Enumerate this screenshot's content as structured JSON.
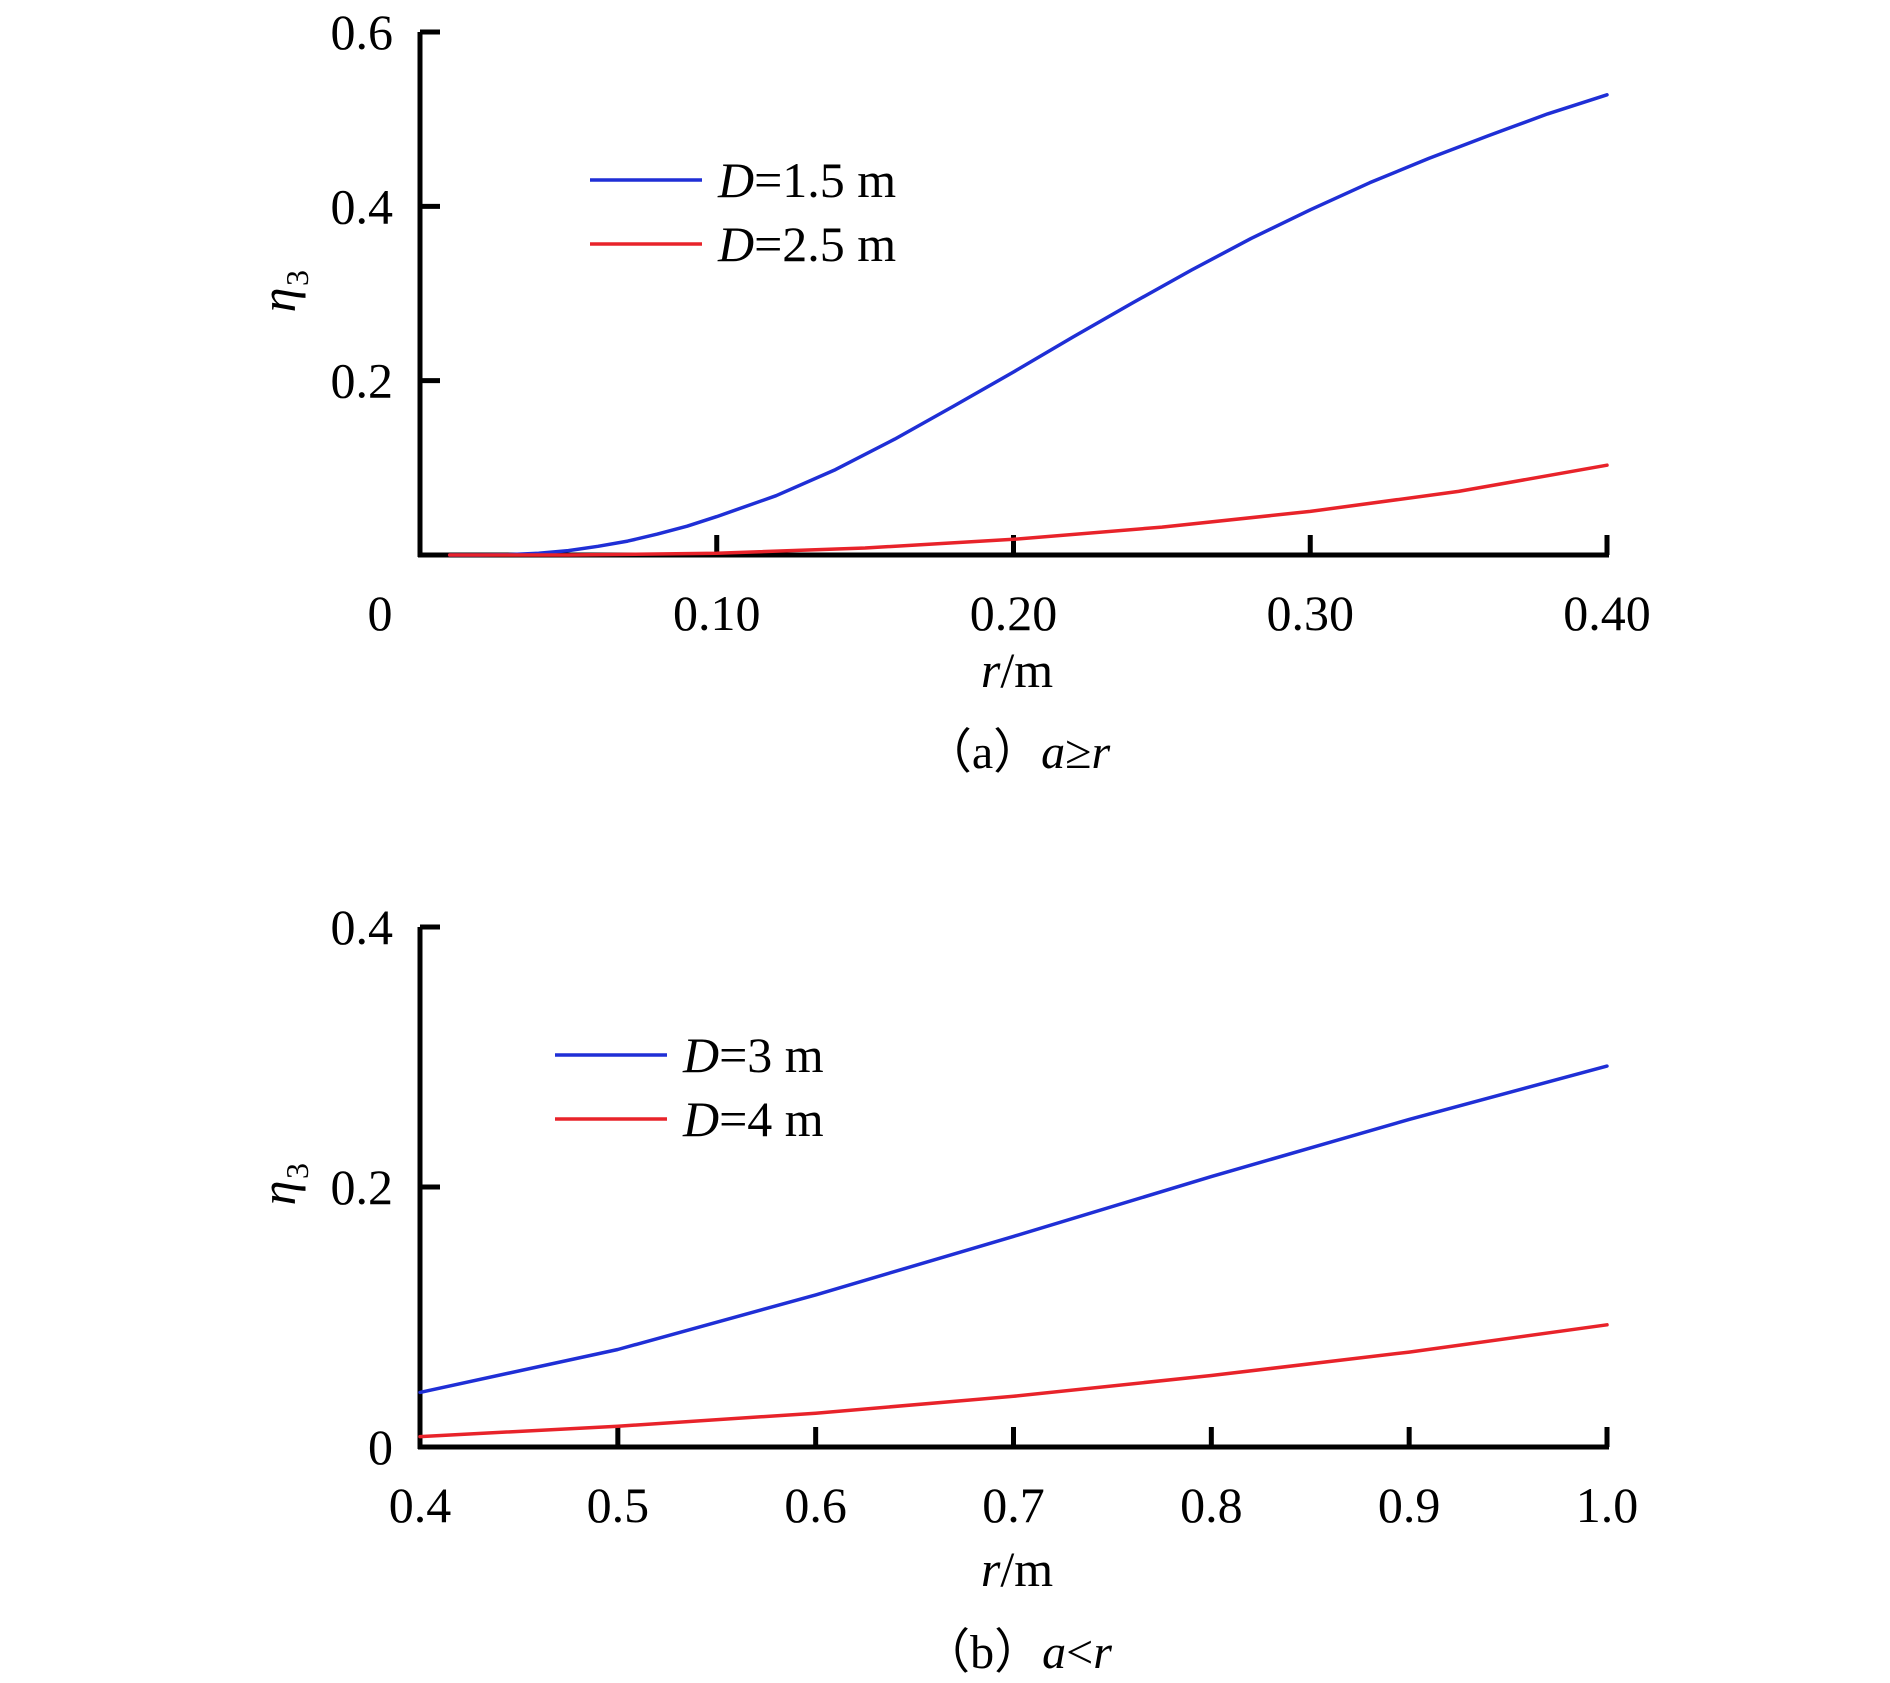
{
  "chart_data": [
    {
      "type": "line",
      "panel_caption": {
        "prefix": "（a）",
        "var_a": "a",
        "relation": "≥",
        "var_r": "r"
      },
      "xlabel": {
        "var": "r",
        "unit": "/m"
      },
      "ylabel": {
        "var": "η",
        "sub": "3"
      },
      "xlim": [
        0.0,
        0.4
      ],
      "ylim": [
        0.0,
        0.6
      ],
      "x_ticks": [
        0.1,
        0.2,
        0.3,
        0.4
      ],
      "x_tick_labels": [
        "0.10",
        "0.20",
        "0.30",
        "0.40"
      ],
      "x_origin_label": "0",
      "y_ticks": [
        0.2,
        0.4,
        0.6
      ],
      "y_tick_labels": [
        "0.2",
        "0.4",
        "0.6"
      ],
      "grid": false,
      "legend_position": "top-left",
      "series": [
        {
          "legend_var": "D",
          "legend_text": "=1.5 m",
          "color": "#1f2fd6",
          "x": [
            0.01,
            0.02,
            0.03,
            0.04,
            0.05,
            0.06,
            0.07,
            0.08,
            0.09,
            0.1,
            0.12,
            0.14,
            0.16,
            0.18,
            0.2,
            0.22,
            0.24,
            0.26,
            0.28,
            0.3,
            0.32,
            0.34,
            0.36,
            0.38,
            0.4
          ],
          "y": [
            0.0,
            0.0,
            0.0005,
            0.002,
            0.005,
            0.01,
            0.016,
            0.024,
            0.033,
            0.044,
            0.068,
            0.098,
            0.133,
            0.171,
            0.21,
            0.25,
            0.289,
            0.327,
            0.363,
            0.396,
            0.427,
            0.455,
            0.481,
            0.506,
            0.528
          ]
        },
        {
          "legend_var": "D",
          "legend_text": "=2.5 m",
          "color": "#e8232a",
          "x": [
            0.01,
            0.05,
            0.1,
            0.15,
            0.2,
            0.25,
            0.3,
            0.35,
            0.4
          ],
          "y": [
            0.0,
            0.0,
            0.002,
            0.008,
            0.018,
            0.032,
            0.05,
            0.073,
            0.103
          ]
        }
      ]
    },
    {
      "type": "line",
      "panel_caption": {
        "prefix": "（b）",
        "var_a": "a",
        "relation": "<",
        "var_r": "r"
      },
      "xlabel": {
        "var": "r",
        "unit": "/m"
      },
      "ylabel": {
        "var": "η",
        "sub": "3"
      },
      "xlim": [
        0.4,
        1.0
      ],
      "ylim": [
        0.0,
        0.4
      ],
      "x_ticks": [
        0.4,
        0.5,
        0.6,
        0.7,
        0.8,
        0.9,
        1.0
      ],
      "x_tick_labels": [
        "0.4",
        "0.5",
        "0.6",
        "0.7",
        "0.8",
        "0.9",
        "1.0"
      ],
      "y_ticks": [
        0.0,
        0.2,
        0.4
      ],
      "y_tick_labels": [
        "0",
        "0.2",
        "0.4"
      ],
      "grid": false,
      "legend_position": "top-left",
      "series": [
        {
          "legend_var": "D",
          "legend_text": "=3 m",
          "color": "#1f2fd6",
          "x": [
            0.4,
            0.5,
            0.6,
            0.7,
            0.8,
            0.9,
            1.0
          ],
          "y": [
            0.042,
            0.075,
            0.117,
            0.162,
            0.208,
            0.252,
            0.293
          ]
        },
        {
          "legend_var": "D",
          "legend_text": "=4 m",
          "color": "#e8232a",
          "x": [
            0.4,
            0.5,
            0.6,
            0.7,
            0.8,
            0.9,
            1.0
          ],
          "y": [
            0.008,
            0.016,
            0.026,
            0.039,
            0.055,
            0.073,
            0.094
          ]
        }
      ]
    }
  ]
}
